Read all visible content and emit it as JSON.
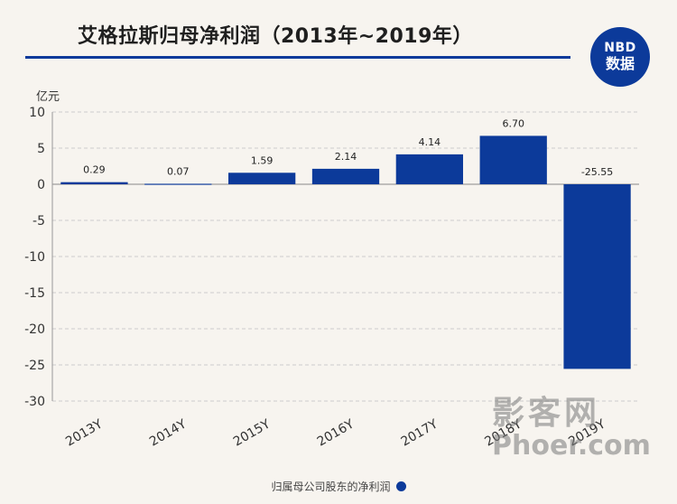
{
  "header": {
    "title": "艾格拉斯归母净利润（2013年~2019年）"
  },
  "logo": {
    "top_n": "N",
    "top_bd": "BD",
    "bottom": "数据"
  },
  "colors": {
    "bar": "#0c3a9a",
    "rule": "#0c3a9a",
    "background": "#f7f4ef",
    "grid": "#cccccc"
  },
  "watermark": {
    "cn": "影客网",
    "en": "Phoer.com"
  },
  "chart_data": {
    "type": "bar",
    "title": "艾格拉斯归母净利润（2013年~2019年）",
    "ylabel": "亿元",
    "xlabel": "",
    "categories": [
      "2013Y",
      "2014Y",
      "2015Y",
      "2016Y",
      "2017Y",
      "2018Y",
      "2019Y"
    ],
    "series": [
      {
        "name": "归属母公司股东的净利润",
        "values": [
          0.29,
          0.07,
          1.59,
          2.14,
          4.14,
          6.7,
          -25.55
        ],
        "labels": [
          "0.29",
          "0.07",
          "1.59",
          "2.14",
          "4.14",
          "6.70",
          "-25.55"
        ]
      }
    ],
    "ylim": [
      -30,
      10
    ],
    "yticks": [
      10,
      5,
      0,
      -5,
      -10,
      -15,
      -20,
      -25,
      -30
    ],
    "grid": true,
    "legend_position": "bottom-center"
  }
}
